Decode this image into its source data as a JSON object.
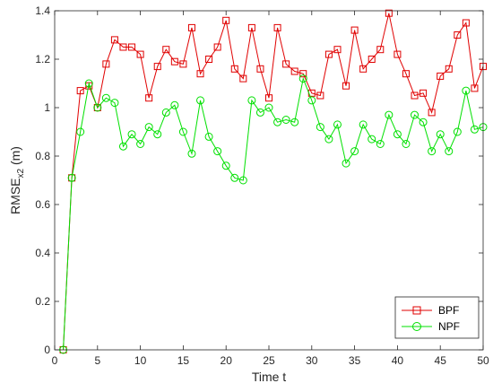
{
  "chart_data": {
    "type": "line",
    "xlabel": "Time t",
    "ylabel": {
      "base": "RMSE",
      "sub": "x2",
      "unit": " (m)"
    },
    "xlim": [
      0,
      50
    ],
    "ylim": [
      0,
      1.4
    ],
    "xticks": [
      0,
      5,
      10,
      15,
      20,
      25,
      30,
      35,
      40,
      45,
      50
    ],
    "yticks": [
      0,
      0.2,
      0.4,
      0.6,
      0.8,
      1,
      1.2,
      1.4
    ],
    "grid": false,
    "legend_position": "bottom-right",
    "x": [
      1,
      2,
      3,
      4,
      5,
      6,
      7,
      8,
      9,
      10,
      11,
      12,
      13,
      14,
      15,
      16,
      17,
      18,
      19,
      20,
      21,
      22,
      23,
      24,
      25,
      26,
      27,
      28,
      29,
      30,
      31,
      32,
      33,
      34,
      35,
      36,
      37,
      38,
      39,
      40,
      41,
      42,
      43,
      44,
      45,
      46,
      47,
      48,
      49,
      50
    ],
    "series": [
      {
        "name": "BPF",
        "color": "#e00000",
        "marker": "square",
        "values": [
          0,
          0.71,
          1.07,
          1.09,
          1.0,
          1.18,
          1.28,
          1.25,
          1.25,
          1.22,
          1.04,
          1.17,
          1.24,
          1.19,
          1.18,
          1.33,
          1.14,
          1.2,
          1.25,
          1.36,
          1.16,
          1.12,
          1.33,
          1.16,
          1.04,
          1.33,
          1.18,
          1.15,
          1.14,
          1.06,
          1.05,
          1.22,
          1.24,
          1.09,
          1.32,
          1.16,
          1.2,
          1.24,
          1.39,
          1.22,
          1.14,
          1.05,
          1.06,
          0.98,
          1.13,
          1.16,
          1.3,
          1.35,
          1.08,
          1.17
        ]
      },
      {
        "name": "NPF",
        "color": "#00e000",
        "marker": "circle",
        "values": [
          0,
          0.71,
          0.9,
          1.1,
          1.0,
          1.04,
          1.02,
          0.84,
          0.89,
          0.85,
          0.92,
          0.89,
          0.98,
          1.01,
          0.9,
          0.81,
          1.03,
          0.88,
          0.82,
          0.76,
          0.71,
          0.7,
          1.03,
          0.98,
          1.0,
          0.94,
          0.95,
          0.94,
          1.12,
          1.03,
          0.92,
          0.87,
          0.93,
          0.77,
          0.82,
          0.93,
          0.87,
          0.85,
          0.97,
          0.89,
          0.85,
          0.97,
          0.94,
          0.82,
          0.89,
          0.82,
          0.9,
          1.07,
          0.91,
          0.92
        ]
      }
    ]
  }
}
